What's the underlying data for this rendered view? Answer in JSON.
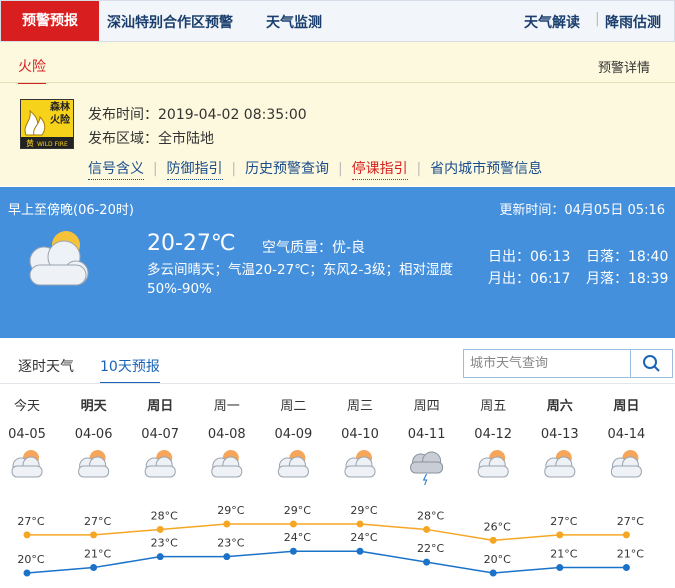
{
  "nav": {
    "tabs": [
      "预警预报",
      "深汕特别合作区预警",
      "天气监测"
    ],
    "right": [
      "天气解读",
      "降雨估测"
    ]
  },
  "warning": {
    "tab": "火险",
    "detail_link": "预警详情",
    "icon_text": [
      "森林",
      "火险"
    ],
    "icon_level": "黄",
    "icon_en": "WILD FIRE",
    "issue_time": "发布时间：2019-04-02 08:35:00",
    "area": "发布区域：全市陆地",
    "links": [
      "信号含义",
      "防御指引",
      "历史预警查询",
      "停课指引",
      "省内城市预警信息"
    ]
  },
  "today": {
    "period": "早上至傍晚(06-20时)",
    "update_time": "更新时间：04月05日 05:16",
    "temp_range": "20-27℃",
    "air_quality": "空气质量：优-良",
    "description": "多云间晴天；气温20-27℃；东风2-3级；相对湿度50%-90%",
    "sunrise": "日出：06:13",
    "sunset": "日落：18:40",
    "moonrise": "月出：06:17",
    "moonset": "月落：18:39"
  },
  "forecast": {
    "tabs": [
      "逐时天气",
      "10天预报"
    ],
    "search_placeholder": "城市天气查询",
    "days": [
      "今天",
      "明天",
      "周日",
      "周一",
      "周二",
      "周三",
      "周四",
      "周五",
      "周六",
      "周日"
    ],
    "dates": [
      "04-05",
      "04-06",
      "04-07",
      "04-08",
      "04-09",
      "04-10",
      "04-11",
      "04-12",
      "04-13",
      "04-14"
    ],
    "high": {
      "color": "#f5a623",
      "values": [
        27,
        27,
        28,
        29,
        29,
        29,
        28,
        26,
        27,
        27
      ],
      "value_labels": [
        "27°C",
        "27°C",
        "28°C",
        "29°C",
        "29°C",
        "29°C",
        "28°C",
        "26°C",
        "27°C",
        "27°C"
      ]
    },
    "low": {
      "color": "#1a73c9",
      "values": [
        20,
        21,
        23,
        23,
        24,
        24,
        22,
        20,
        21,
        21
      ],
      "value_labels": [
        "20°C",
        "21°C",
        "23°C",
        "23°C",
        "24°C",
        "24°C",
        "22°C",
        "20°C",
        "21°C",
        "21°C"
      ]
    }
  }
}
